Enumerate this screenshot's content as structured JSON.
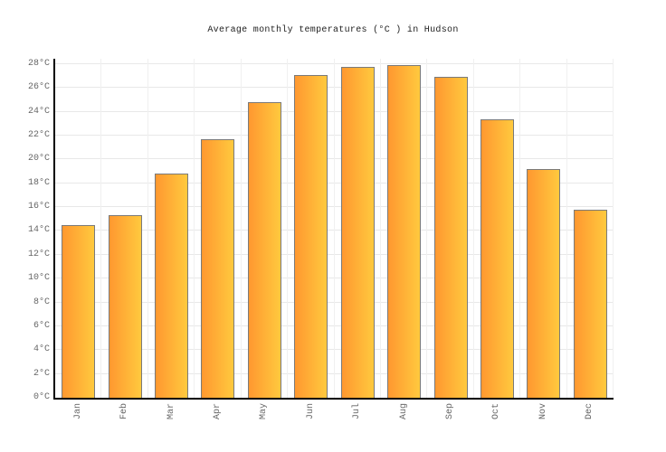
{
  "title": "Average monthly temperatures (°C ) in Hudson",
  "chart_data": {
    "type": "bar",
    "title": "Average monthly temperatures (°C ) in Hudson",
    "categories": [
      "Jan",
      "Feb",
      "Mar",
      "Apr",
      "May",
      "Jun",
      "Jul",
      "Aug",
      "Sep",
      "Oct",
      "Nov",
      "Dec"
    ],
    "values": [
      14.5,
      15.3,
      18.8,
      21.7,
      24.8,
      27.1,
      27.8,
      27.9,
      26.9,
      23.4,
      19.2,
      15.8
    ],
    "unit": "°C",
    "xlabel": "",
    "ylabel": "",
    "ylim": [
      0,
      28.45
    ],
    "y_ticks": [
      0,
      2,
      4,
      6,
      8,
      10,
      12,
      14,
      16,
      18,
      20,
      22,
      24,
      26,
      28
    ],
    "y_tick_suffix": "°C",
    "grid": true,
    "legend": false,
    "bar_orientation": "vertical",
    "x_label_rotation": -90
  },
  "colors": {
    "background": "#FFFFFF",
    "bar_gradient_left": "#FF9830",
    "bar_gradient_right": "#FFC93E",
    "bar_border": "#7A7A7A",
    "axis": "#000000",
    "h_gridline": "#E8E8E8",
    "v_gridline": "#F0F0F0",
    "tick_label": "#666666",
    "title_color": "#222222"
  }
}
